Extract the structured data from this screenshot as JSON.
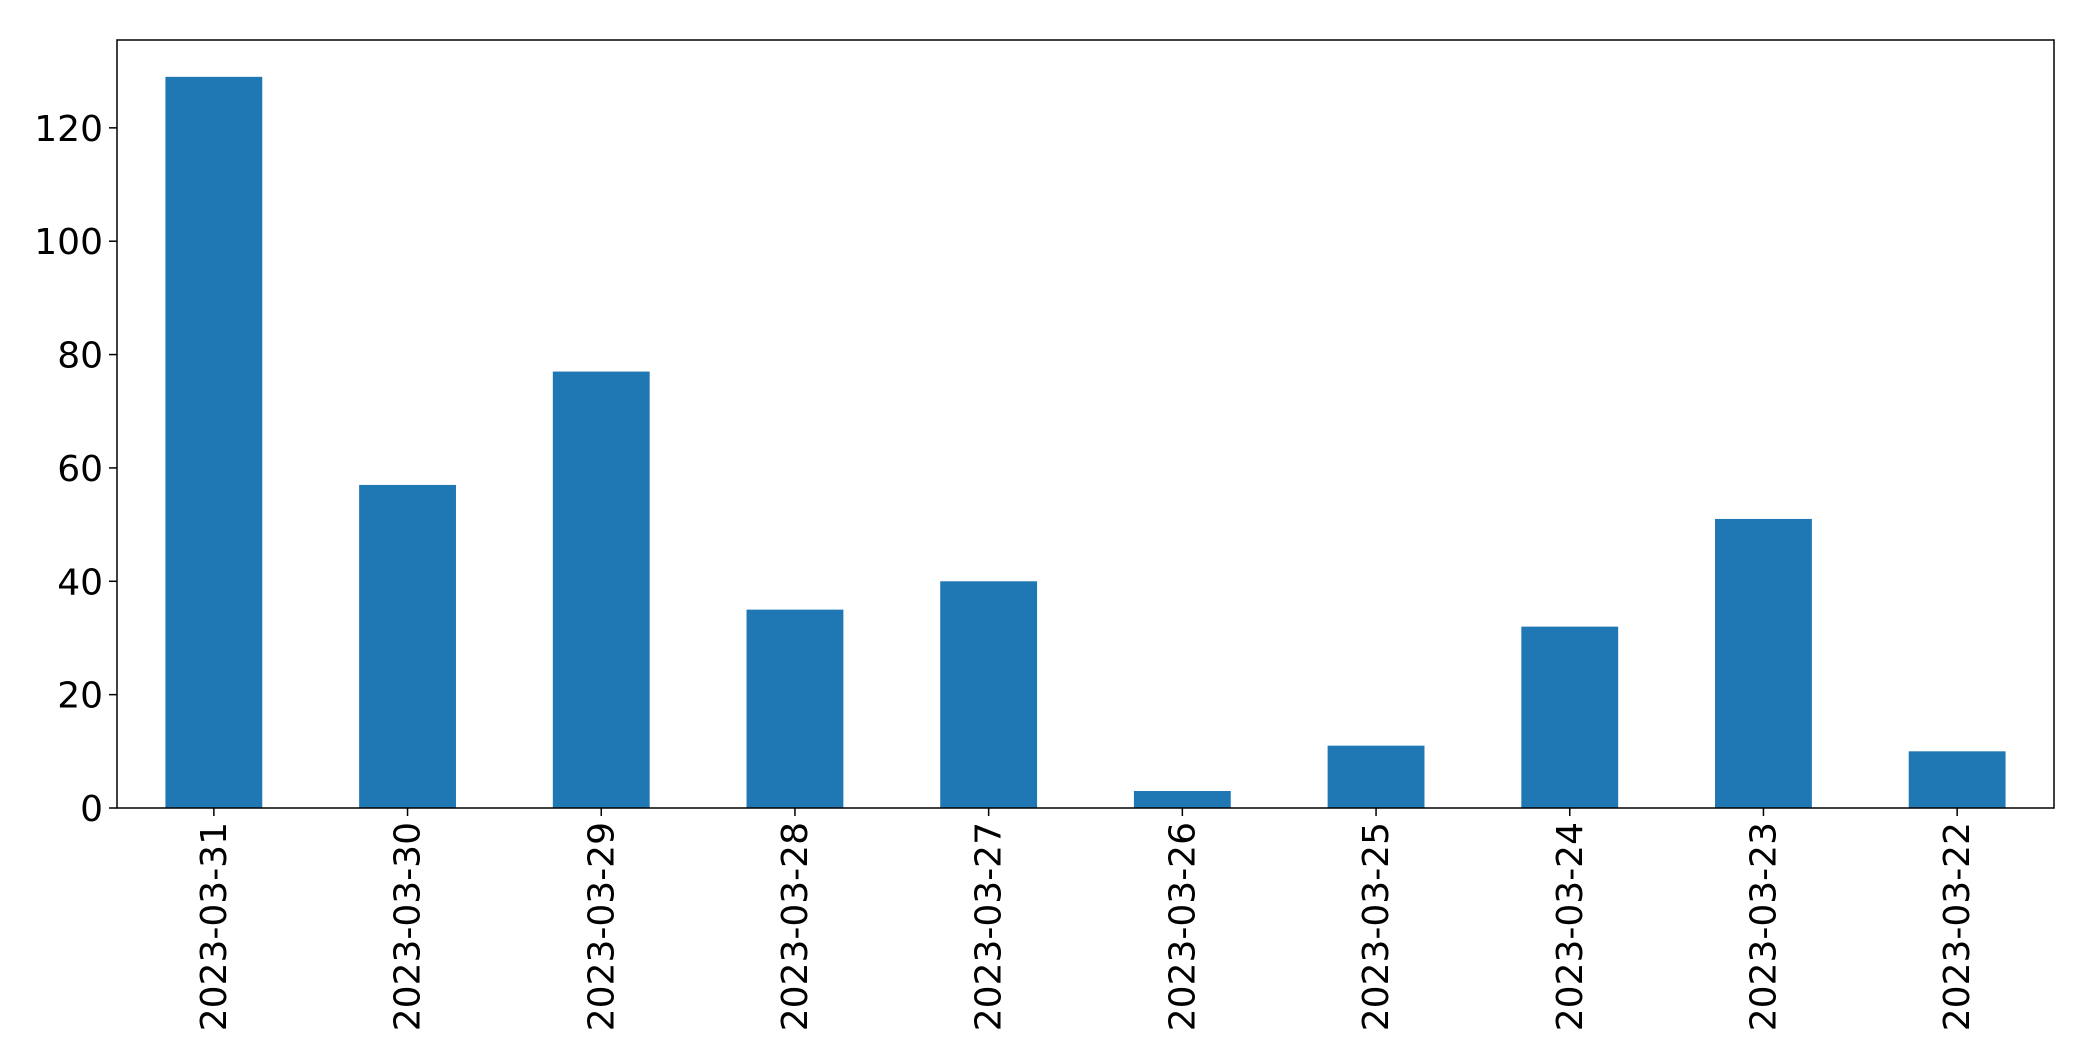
{
  "chart_data": {
    "type": "bar",
    "title": "",
    "xlabel": "",
    "ylabel": "",
    "categories": [
      "2023-03-31",
      "2023-03-30",
      "2023-03-29",
      "2023-03-28",
      "2023-03-27",
      "2023-03-26",
      "2023-03-25",
      "2023-03-24",
      "2023-03-23",
      "2023-03-22"
    ],
    "values": [
      129,
      57,
      77,
      35,
      40,
      3,
      11,
      32,
      51,
      10
    ],
    "ylim": [
      0,
      135.5
    ],
    "yticks": [
      0,
      20,
      40,
      60,
      80,
      100,
      120
    ],
    "grid": false,
    "legend": "none",
    "bar_color": "#1f77b4"
  }
}
